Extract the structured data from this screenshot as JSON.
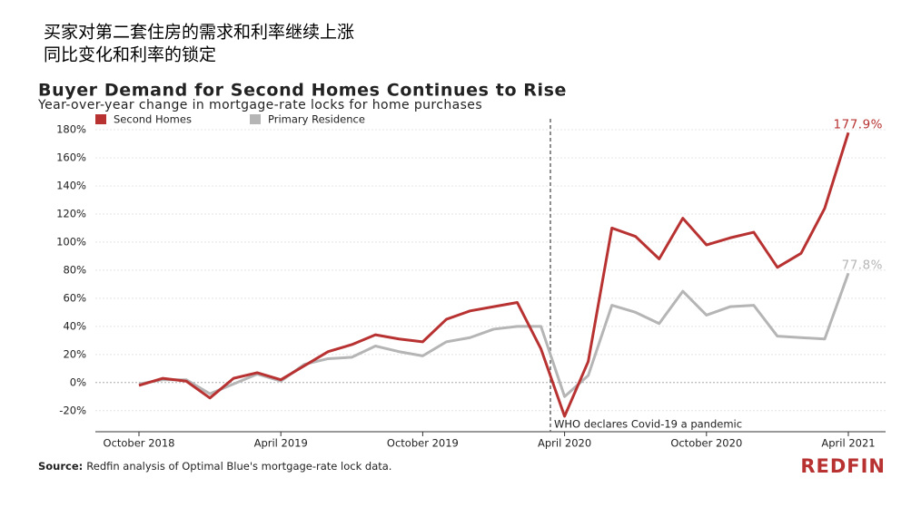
{
  "header": {
    "lines": [
      "买家对第二套住房的需求和利率继续上涨",
      "同比变化和利率的锁定"
    ]
  },
  "chart_data": {
    "type": "line",
    "title": "Buyer Demand for Second Homes Continues to Rise",
    "subtitle": "Year-over-year change in mortgage-rate locks for home purchases",
    "categories": [
      "October 2018",
      null,
      null,
      null,
      null,
      null,
      "April 2019",
      null,
      null,
      null,
      null,
      null,
      "October 2019",
      null,
      null,
      null,
      null,
      null,
      "April 2020",
      null,
      null,
      null,
      null,
      null,
      "October 2020",
      null,
      null,
      null,
      null,
      null,
      "April 2021"
    ],
    "series": [
      {
        "name": "Second Homes",
        "color": "#b83232",
        "values": [
          -2,
          3,
          1,
          -11,
          3,
          7,
          2,
          12,
          22,
          27,
          34,
          31,
          29,
          45,
          51,
          54,
          57,
          24,
          -24,
          15,
          110,
          104,
          88,
          117,
          98,
          103,
          107,
          82,
          92,
          124,
          177.9
        ],
        "value_labels": [
          null,
          null,
          null,
          null,
          null,
          null,
          null,
          null,
          null,
          null,
          null,
          null,
          null,
          null,
          null,
          null,
          null,
          null,
          null,
          null,
          null,
          null,
          null,
          null,
          null,
          null,
          null,
          null,
          null,
          null,
          "177.9%"
        ]
      },
      {
        "name": "Primary Residence",
        "color": "#b5b5b5",
        "values": [
          -1,
          2,
          2,
          -8,
          -1,
          6,
          1,
          13,
          17,
          18,
          26,
          22,
          19,
          29,
          32,
          38,
          40,
          40,
          -10,
          5,
          55,
          50,
          42,
          65,
          48,
          54,
          55,
          33,
          32,
          31,
          77.8
        ],
        "value_labels": [
          null,
          null,
          null,
          null,
          null,
          null,
          null,
          null,
          null,
          null,
          null,
          null,
          null,
          null,
          null,
          null,
          null,
          null,
          null,
          null,
          null,
          null,
          null,
          null,
          null,
          null,
          null,
          null,
          null,
          null,
          "77.8%"
        ]
      }
    ],
    "ylim": [
      -35,
      180
    ],
    "yticks": [
      {
        "value": -20,
        "label": "-20%"
      },
      {
        "value": 0,
        "label": "0%"
      },
      {
        "value": 20,
        "label": "20%"
      },
      {
        "value": 40,
        "label": "40%"
      },
      {
        "value": 60,
        "label": "60%"
      },
      {
        "value": 80,
        "label": "80%"
      },
      {
        "value": 100,
        "label": "100%"
      },
      {
        "value": 120,
        "label": "120%"
      },
      {
        "value": 140,
        "label": "140%"
      },
      {
        "value": 160,
        "label": "160%"
      },
      {
        "value": 180,
        "label": "180%"
      }
    ],
    "grid": true,
    "annotation": "WHO declares Covid-19 a pandemic",
    "source_label": "Source:",
    "source": "Redfin analysis of Optimal Blue's mortgage-rate lock data.",
    "logo": "REDFIN"
  }
}
